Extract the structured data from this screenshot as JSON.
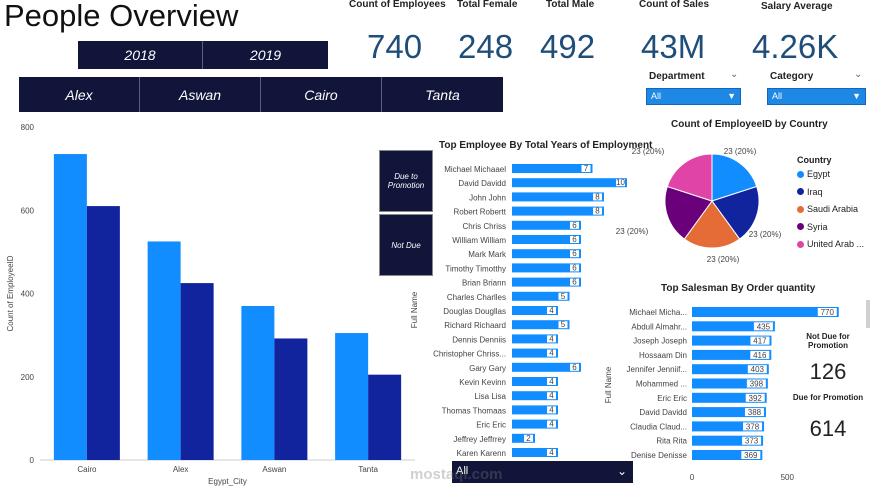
{
  "title": "People Overview",
  "year_slicer": [
    "2018",
    "2019"
  ],
  "city_slicer": [
    "Alex",
    "Aswan",
    "Cairo",
    "Tanta"
  ],
  "kpis": [
    {
      "label": "Count of Employees",
      "value": "740"
    },
    {
      "label": "Total Female",
      "value": "248"
    },
    {
      "label": "Total Male",
      "value": "492"
    },
    {
      "label": "Count of Sales",
      "value": "43M"
    },
    {
      "label": "Salary Average",
      "value": "4.26K"
    }
  ],
  "filters": {
    "department": {
      "label": "Department",
      "value": "All"
    },
    "category": {
      "label": "Category",
      "value": "All"
    }
  },
  "colors": {
    "light_blue": "#118dff",
    "dark_blue": "#12239e",
    "navy": "#11153a",
    "orange": "#e66c37",
    "purple": "#6b007b",
    "pink": "#e044a7"
  },
  "promotion_slicer": [
    "Due to Promotion",
    "Not Due"
  ],
  "cards": {
    "not_due_label": "Not Due for Promotion",
    "not_due_value": "126",
    "due_label": "Due for Promotion",
    "due_value": "614"
  },
  "bottom_slicer": {
    "value": "All"
  },
  "watermark": "mostaql.com",
  "chart_data": [
    {
      "type": "bar",
      "title": "",
      "xlabel": "Egypt_City",
      "ylabel": "Count of EmployeeID",
      "categories": [
        "Cairo",
        "Alex",
        "Aswan",
        "Tanta"
      ],
      "series": [
        {
          "values": [
            735,
            525,
            370,
            305
          ]
        },
        {
          "values": [
            610,
            425,
            292,
            205
          ]
        }
      ],
      "ylim": [
        0,
        800
      ],
      "yticks": [
        0,
        200,
        400,
        600,
        800
      ],
      "legend": "none"
    },
    {
      "type": "bar",
      "title": "Top Employee By Total Years of Employment",
      "ylabel": "Full Name",
      "categories": [
        "Michael Michaael",
        "David Davidd",
        "John John",
        "Robert Robertt",
        "Chris Chriss",
        "William William",
        "Mark Mark",
        "Timothy Timotthy",
        "Brian Briann",
        "Charles Charlles",
        "Douglas Dougllas",
        "Richard Richaard",
        "Dennis Denniis",
        "Christopher Chriss...",
        "Gary Gary",
        "Kevin Kevinn",
        "Lisa Lisa",
        "Thomas Thomaas",
        "Eric Eric",
        "Jeffrey Jeffrrey",
        "Karen Karenn"
      ],
      "values": [
        7,
        10,
        8,
        8,
        6,
        6,
        6,
        6,
        6,
        5,
        4,
        5,
        4,
        4,
        6,
        4,
        4,
        4,
        4,
        2,
        4
      ]
    },
    {
      "type": "pie",
      "title": "Count of EmployeeID by Country",
      "legend_title": "Country",
      "categories": [
        "Egypt",
        "Iraq",
        "Saudi Arabia",
        "Syria",
        "United Arab ..."
      ],
      "values": [
        23,
        23,
        23,
        23,
        23
      ],
      "labels": [
        "23 (20%)",
        "23 (20%)",
        "23 (20%)",
        "23 (20%)",
        "23 (20%)"
      ],
      "legend": "right"
    },
    {
      "type": "bar",
      "title": "Top Salesman By Order quantity",
      "ylabel": "Full Name",
      "categories": [
        "Michael Micha...",
        "Abdull Almahr...",
        "Joseph Joseph",
        "Hossaam Din",
        "Jennifer Jenniif...",
        "Mohammed ...",
        "Eric Eric",
        "David Davidd",
        "Claudia Claud...",
        "Rita Rita",
        "Denise Denisse"
      ],
      "values": [
        770,
        435,
        417,
        416,
        403,
        398,
        392,
        388,
        378,
        373,
        369
      ],
      "xticks": [
        0,
        500
      ]
    }
  ]
}
